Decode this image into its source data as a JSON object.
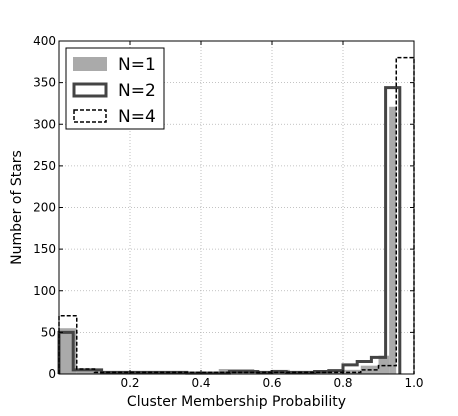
{
  "chart_data": {
    "type": "bar",
    "subtype": "step-histogram",
    "xlabel": "Cluster Membership Probability",
    "ylabel": "Number  of  Stars",
    "xlim": [
      0.0,
      1.0
    ],
    "ylim": [
      0,
      400
    ],
    "xticks": [
      0.2,
      0.4,
      0.6,
      0.8,
      1.0
    ],
    "xtick_labels": [
      "0.2",
      "0.4",
      "0.6",
      "0.8",
      "1.0"
    ],
    "yticks": [
      0,
      50,
      100,
      150,
      200,
      250,
      300,
      350,
      400
    ],
    "ytick_labels": [
      "0",
      "50",
      "100",
      "150",
      "200",
      "250",
      "300",
      "350",
      "400"
    ],
    "grid": true,
    "legend_position": "top-left",
    "bin_edges": [
      0.0,
      0.05,
      0.1,
      0.15,
      0.2,
      0.25,
      0.3,
      0.35,
      0.4,
      0.45,
      0.5,
      0.55,
      0.6,
      0.65,
      0.7,
      0.75,
      0.8,
      0.85,
      0.9,
      0.95,
      1.0
    ],
    "series": [
      {
        "name": "N=1",
        "style": "filled",
        "color": "#aaaaaa",
        "edges": [
          0.0,
          0.05,
          0.1,
          0.15,
          0.2,
          0.25,
          0.3,
          0.35,
          0.4,
          0.45,
          0.5,
          0.55,
          0.6,
          0.65,
          0.7,
          0.75,
          0.8,
          0.85,
          0.9,
          0.93,
          0.95
        ],
        "values": [
          55,
          3,
          3,
          3,
          3,
          3,
          3,
          3,
          3,
          6,
          6,
          3,
          5,
          3,
          3,
          3,
          5,
          10,
          22,
          321
        ]
      },
      {
        "name": "N=2",
        "style": "step-solid",
        "color": "#444444",
        "edges": [
          0.0,
          0.04,
          0.08,
          0.12,
          0.16,
          0.2,
          0.24,
          0.28,
          0.32,
          0.36,
          0.4,
          0.44,
          0.48,
          0.52,
          0.56,
          0.6,
          0.64,
          0.68,
          0.72,
          0.76,
          0.8,
          0.84,
          0.88,
          0.92,
          0.96
        ],
        "values": [
          50,
          5,
          5,
          2,
          2,
          2,
          2,
          2,
          2,
          1,
          1,
          1,
          3,
          3,
          2,
          3,
          2,
          2,
          3,
          4,
          11,
          15,
          20,
          344
        ]
      },
      {
        "name": "N=4",
        "style": "step-dashed",
        "color": "#000000",
        "edges": [
          0.0,
          0.05,
          0.1,
          0.15,
          0.2,
          0.25,
          0.3,
          0.35,
          0.4,
          0.45,
          0.5,
          0.55,
          0.6,
          0.65,
          0.7,
          0.75,
          0.8,
          0.85,
          0.9,
          0.95,
          1.0
        ],
        "values": [
          70,
          6,
          2,
          2,
          2,
          2,
          2,
          2,
          2,
          2,
          2,
          2,
          2,
          2,
          2,
          2,
          2,
          5,
          10,
          380
        ]
      }
    ]
  }
}
